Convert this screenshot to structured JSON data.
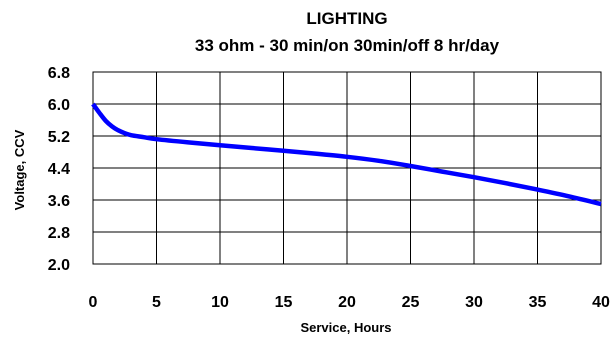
{
  "chart_data": {
    "type": "line",
    "title": "LIGHTING",
    "subtitle": "33 ohm - 30 min/on 30min/off 8 hr/day",
    "xlabel": "Service, Hours",
    "ylabel": "Voltage, CCV",
    "xlim": [
      0,
      40
    ],
    "ylim": [
      2.0,
      6.8
    ],
    "x_ticks": [
      "0",
      "5",
      "10",
      "15",
      "20",
      "25",
      "30",
      "35",
      "40"
    ],
    "y_ticks": [
      "6.8",
      "6.0",
      "5.2",
      "4.4",
      "3.6",
      "2.8",
      "2.0"
    ],
    "grid": true,
    "legend": "none",
    "series": [
      {
        "color": "#0000ff",
        "x": [
          0,
          0.5,
          1,
          1.5,
          2,
          2.5,
          3,
          4,
          5,
          7.5,
          10,
          12.5,
          15,
          17.5,
          20,
          22.5,
          25,
          27.5,
          30,
          32.5,
          35,
          37.5,
          40
        ],
        "y": [
          6.0,
          5.78,
          5.58,
          5.44,
          5.34,
          5.27,
          5.22,
          5.17,
          5.12,
          5.04,
          4.97,
          4.9,
          4.83,
          4.76,
          4.68,
          4.58,
          4.45,
          4.31,
          4.17,
          4.02,
          3.86,
          3.69,
          3.5
        ]
      }
    ]
  }
}
